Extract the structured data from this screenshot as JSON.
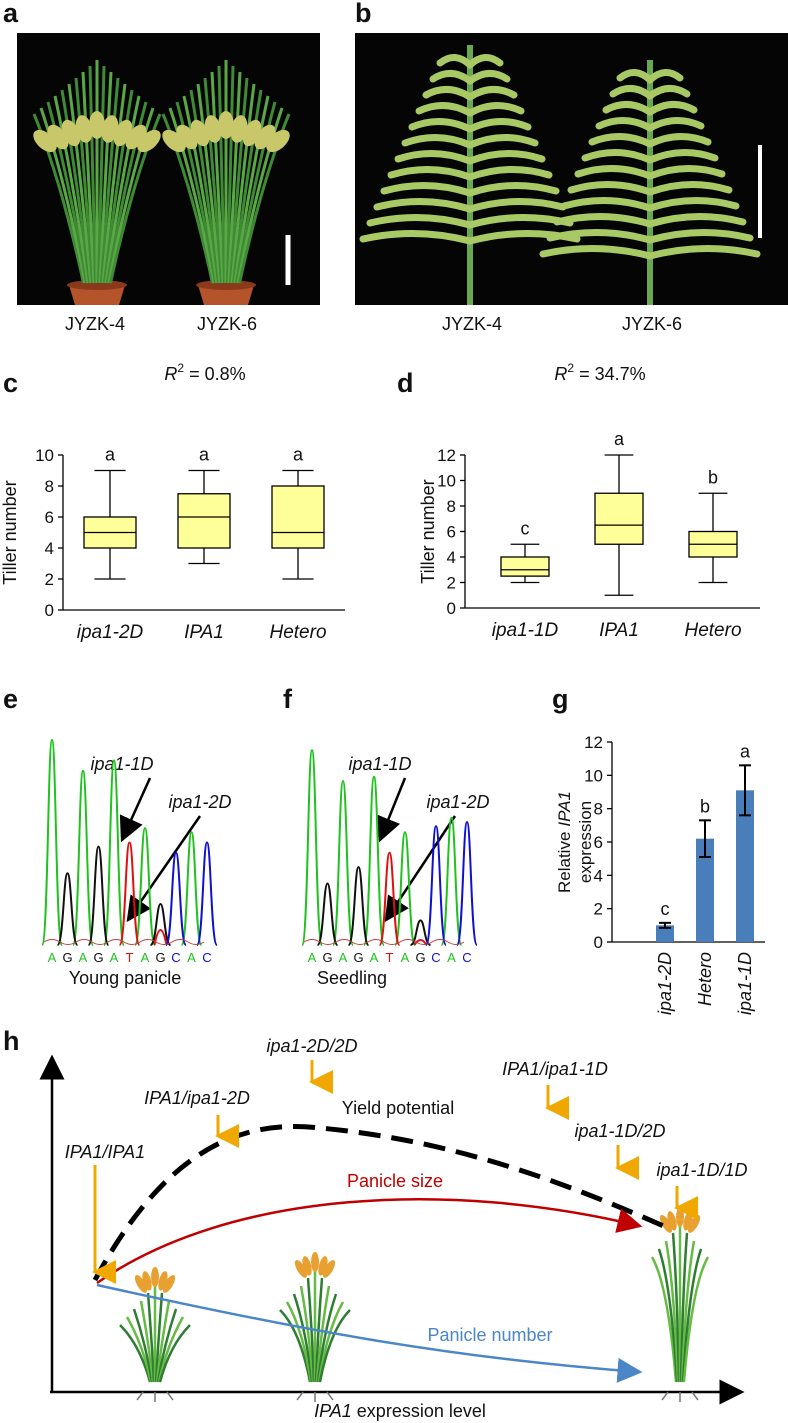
{
  "panel_labels": [
    "a",
    "b",
    "c",
    "d",
    "e",
    "f",
    "g",
    "h"
  ],
  "photos": [
    {
      "captions": [
        "JYZK-4",
        "JYZK-6"
      ]
    },
    {
      "captions": [
        "JYZK-4",
        "JYZK-6"
      ]
    }
  ],
  "chart_data": [
    {
      "type": "box",
      "annotation": [
        "R",
        "2",
        "= 0.8%"
      ],
      "y_label": "Tiller number",
      "categories": [
        "ipa1-2D",
        "IPA1",
        "Hetero"
      ],
      "boxes": [
        {
          "min": 2,
          "q1": 4,
          "median": 5,
          "q3": 6,
          "max": 9
        },
        {
          "min": 3,
          "q1": 4,
          "median": 6,
          "q3": 7.5,
          "max": 9
        },
        {
          "min": 2,
          "q1": 4,
          "median": 5,
          "q3": 8,
          "max": 9
        }
      ],
      "letters": [
        "a",
        "a",
        "a"
      ],
      "ylim": [
        0,
        10
      ],
      "yticks": [
        0,
        2,
        4,
        6,
        8,
        10
      ],
      "color": "#ffff99"
    },
    {
      "type": "box",
      "annotation": [
        "R",
        "2",
        "= 34.7%"
      ],
      "y_label": "Tiller number",
      "categories": [
        "ipa1-1D",
        "IPA1",
        "Hetero"
      ],
      "boxes": [
        {
          "min": 2,
          "q1": 2.5,
          "median": 3,
          "q3": 4,
          "max": 5
        },
        {
          "min": 1,
          "q1": 5,
          "median": 6.5,
          "q3": 9,
          "max": 12
        },
        {
          "min": 2,
          "q1": 4,
          "median": 5,
          "q3": 6,
          "max": 9
        }
      ],
      "letters": [
        "c",
        "a",
        "b"
      ],
      "ylim": [
        0,
        12
      ],
      "yticks": [
        0,
        2,
        4,
        6,
        8,
        10,
        12
      ],
      "color": "#ffff99"
    },
    {
      "type": "bar",
      "y_label": [
        "Relative",
        "IPA1",
        "expression"
      ],
      "categories": [
        "ipa1-2D",
        "Hetero",
        "ipa1-1D"
      ],
      "values": [
        1,
        6.2,
        9.1
      ],
      "errors": [
        0.15,
        1.1,
        1.5
      ],
      "letters": [
        "c",
        "b",
        "a"
      ],
      "ylim": [
        0,
        12
      ],
      "yticks": [
        0,
        2,
        4,
        6,
        8,
        10,
        12
      ],
      "color": "#4a7ebb"
    }
  ],
  "chromatograms": [
    {
      "labels": [
        "ipa1-1D",
        "ipa1-2D"
      ],
      "sequence": [
        "A",
        "G",
        "A",
        "G",
        "A",
        "T",
        "A",
        "G",
        "C",
        "A",
        "C"
      ],
      "caption": "Young panicle"
    },
    {
      "labels": [
        "ipa1-1D",
        "ipa1-2D"
      ],
      "sequence": [
        "A",
        "G",
        "A",
        "G",
        "A",
        "T",
        "A",
        "G",
        "C",
        "A",
        "C"
      ],
      "caption": "Seedling"
    }
  ],
  "diagram": {
    "genotypes": [
      "IPA1/IPA1",
      "IPA1/ipa1-2D",
      "ipa1-2D/2D",
      "IPA1/ipa1-1D",
      "ipa1-1D/2D",
      "ipa1-1D/1D"
    ],
    "curves": [
      "Yield potential",
      "Panicle size",
      "Panicle number"
    ],
    "x_label": [
      "IPA1",
      "expression level"
    ]
  }
}
